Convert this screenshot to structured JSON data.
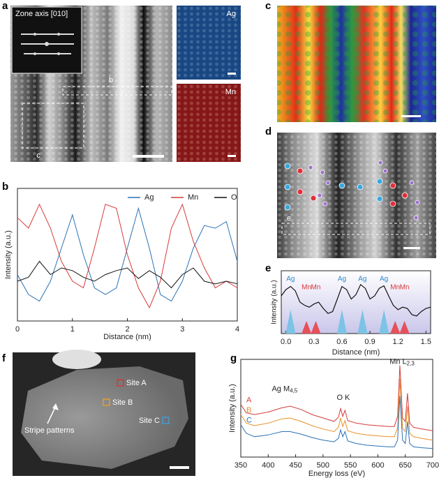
{
  "panel_labels": [
    "a",
    "b",
    "c",
    "d",
    "e",
    "f",
    "g"
  ],
  "figure_a": {
    "inset_label": "Zone axis [010]",
    "box_labels": [
      "b",
      "c"
    ],
    "map_labels": [
      "Ag",
      "Mn"
    ]
  },
  "figure_d": {
    "box_label": "e"
  },
  "figure_f": {
    "sites": [
      "Site A",
      "Site B",
      "Site C"
    ],
    "arrow_label": "Stripe patterns"
  },
  "chart_data": [
    {
      "type": "line",
      "xlabel": "Distance (nm)",
      "ylabel": "Intensity (a.u.)",
      "legend": "top-right",
      "x": [
        0,
        0.2,
        0.4,
        0.6,
        0.8,
        1.0,
        1.2,
        1.4,
        1.6,
        1.8,
        2.0,
        2.2,
        2.4,
        2.6,
        2.8,
        3.0,
        3.2,
        3.4,
        3.6,
        3.8,
        4.0
      ],
      "series": [
        {
          "name": "Ag",
          "color": "#2a72b5",
          "values": [
            0.35,
            0.2,
            0.15,
            0.3,
            0.55,
            0.8,
            0.5,
            0.25,
            0.2,
            0.25,
            0.55,
            0.85,
            0.55,
            0.2,
            0.15,
            0.3,
            0.55,
            0.72,
            0.7,
            0.75,
            0.45
          ]
        },
        {
          "name": "Mn",
          "color": "#d63a3a",
          "values": [
            0.78,
            0.7,
            0.88,
            0.7,
            0.45,
            0.3,
            0.25,
            0.55,
            0.88,
            0.85,
            0.5,
            0.25,
            0.1,
            0.3,
            0.7,
            0.88,
            0.6,
            0.4,
            0.25,
            0.3,
            0.25
          ]
        },
        {
          "name": "O",
          "color": "#111111",
          "values": [
            0.3,
            0.33,
            0.45,
            0.35,
            0.4,
            0.38,
            0.33,
            0.3,
            0.35,
            0.38,
            0.4,
            0.32,
            0.38,
            0.33,
            0.25,
            0.35,
            0.4,
            0.3,
            0.28,
            0.3,
            0.28
          ]
        }
      ],
      "xlim": [
        0,
        4
      ],
      "xticks": [
        0,
        1,
        2,
        3,
        4
      ],
      "ylim": [
        0,
        1
      ]
    },
    {
      "type": "line",
      "xlabel": "Distance (nm)",
      "ylabel": "Intensity (a.u.)",
      "color": "#111111",
      "x": [
        -0.05,
        0,
        0.05,
        0.1,
        0.15,
        0.2,
        0.25,
        0.3,
        0.35,
        0.4,
        0.45,
        0.5,
        0.55,
        0.6,
        0.65,
        0.7,
        0.75,
        0.8,
        0.85,
        0.9,
        0.95,
        1.0,
        1.05,
        1.1,
        1.15,
        1.2,
        1.25,
        1.3,
        1.35,
        1.4,
        1.45,
        1.5,
        1.55
      ],
      "values": [
        0.6,
        0.7,
        0.75,
        0.68,
        0.5,
        0.45,
        0.42,
        0.47,
        0.5,
        0.4,
        0.32,
        0.35,
        0.55,
        0.75,
        0.7,
        0.55,
        0.62,
        0.78,
        0.72,
        0.55,
        0.6,
        0.72,
        0.76,
        0.6,
        0.45,
        0.38,
        0.42,
        0.4,
        0.3,
        0.28,
        0.35,
        0.4,
        0.42
      ],
      "atoms": [
        {
          "element": "Ag",
          "x": 0.05
        },
        {
          "element": "Mn",
          "x": 0.22
        },
        {
          "element": "Mn",
          "x": 0.32
        },
        {
          "element": "Ag",
          "x": 0.6
        },
        {
          "element": "Ag",
          "x": 0.82
        },
        {
          "element": "Ag",
          "x": 1.05
        },
        {
          "element": "Mn",
          "x": 1.17
        },
        {
          "element": "Mn",
          "x": 1.27
        }
      ],
      "atom_colors": {
        "Ag": "#7cc3e6",
        "Mn": "#e6505a"
      },
      "xlim": [
        -0.05,
        1.55
      ],
      "xticks": [
        {
          "value": 0,
          "label": "0.0"
        },
        0.3,
        0.6,
        0.9,
        1.2,
        1.5
      ],
      "ylim": [
        0,
        1
      ]
    },
    {
      "type": "line",
      "xlabel": "Energy loss (eV)",
      "ylabel": "Intensity (a.u.)",
      "x": [
        350,
        360,
        375,
        400,
        425,
        440,
        460,
        480,
        500,
        520,
        528,
        532,
        536,
        540,
        545,
        560,
        580,
        600,
        620,
        630,
        636,
        640,
        645,
        650,
        654,
        658,
        665,
        680,
        700
      ],
      "series": [
        {
          "name": "A",
          "color": "#d63a3a",
          "values": [
            0.62,
            0.52,
            0.5,
            0.53,
            0.58,
            0.6,
            0.56,
            0.5,
            0.46,
            0.42,
            0.47,
            0.57,
            0.48,
            0.55,
            0.43,
            0.4,
            0.38,
            0.37,
            0.36,
            0.36,
            0.48,
            1.08,
            0.46,
            0.42,
            0.75,
            0.4,
            0.35,
            0.33,
            0.31
          ]
        },
        {
          "name": "B",
          "color": "#e8902a",
          "values": [
            0.5,
            0.4,
            0.37,
            0.4,
            0.45,
            0.46,
            0.42,
            0.37,
            0.33,
            0.3,
            0.35,
            0.46,
            0.36,
            0.43,
            0.31,
            0.28,
            0.26,
            0.25,
            0.24,
            0.24,
            0.34,
            0.92,
            0.34,
            0.3,
            0.6,
            0.28,
            0.24,
            0.22,
            0.2
          ]
        },
        {
          "name": "C",
          "color": "#2a72b5",
          "values": [
            0.38,
            0.28,
            0.24,
            0.26,
            0.3,
            0.3,
            0.27,
            0.23,
            0.2,
            0.18,
            0.22,
            0.32,
            0.24,
            0.3,
            0.19,
            0.16,
            0.14,
            0.13,
            0.12,
            0.12,
            0.2,
            0.72,
            0.2,
            0.16,
            0.42,
            0.16,
            0.12,
            0.11,
            0.1
          ]
        }
      ],
      "annotations": [
        {
          "text": "Ag M",
          "sub": "4,5"
        },
        {
          "text": "O K"
        },
        {
          "text": "Mn L",
          "sub": "2,3"
        }
      ],
      "xlim": [
        350,
        700
      ],
      "xticks": [
        350,
        400,
        450,
        500,
        550,
        600,
        650,
        700
      ],
      "ylim": [
        0,
        1.15
      ]
    }
  ]
}
